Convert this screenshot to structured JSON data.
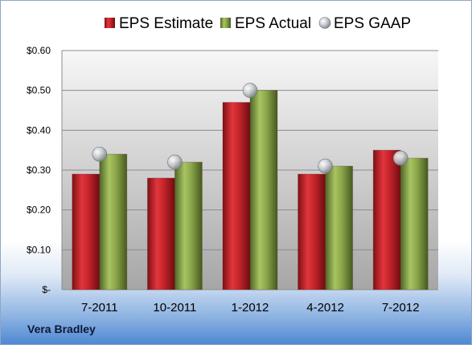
{
  "company": "Vera Bradley",
  "chart_data": {
    "type": "bar",
    "categories": [
      "7-2011",
      "10-2011",
      "1-2012",
      "4-2012",
      "7-2012"
    ],
    "series": [
      {
        "name": "EPS Estimate",
        "kind": "bar",
        "color": "#c0262d",
        "values": [
          0.29,
          0.28,
          0.47,
          0.29,
          0.35
        ]
      },
      {
        "name": "EPS Actual",
        "kind": "bar",
        "color": "#8aa64a",
        "values": [
          0.34,
          0.32,
          0.5,
          0.31,
          0.33
        ]
      },
      {
        "name": "EPS GAAP",
        "kind": "marker",
        "color": "#b8bcc4",
        "values": [
          0.34,
          0.32,
          0.5,
          0.31,
          0.33
        ]
      }
    ],
    "y_ticks": [
      "$-",
      "$0.10",
      "$0.20",
      "$0.30",
      "$0.40",
      "$0.50",
      "$0.60"
    ],
    "ylim": [
      0,
      0.6
    ],
    "grid": true,
    "legend_position": "top"
  }
}
